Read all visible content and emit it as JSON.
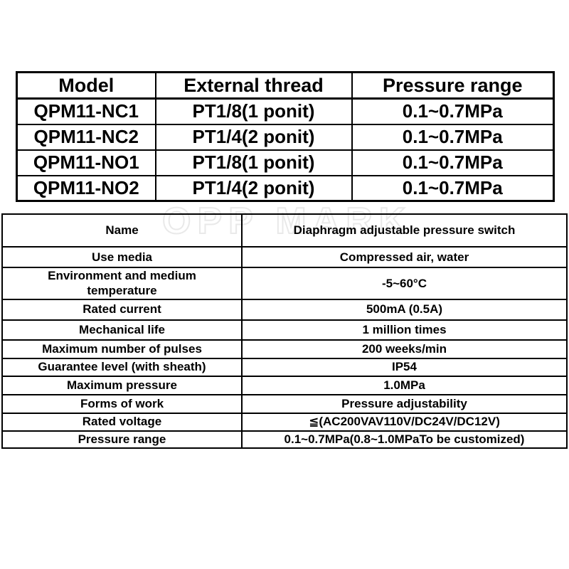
{
  "watermark": "OPP MARK",
  "model_table": {
    "headers": [
      "Model",
      "External thread",
      "Pressure range"
    ],
    "rows": [
      [
        "QPM11-NC1",
        "PT1/8(1 ponit)",
        "0.1~0.7MPa"
      ],
      [
        "QPM11-NC2",
        "PT1/4(2 ponit)",
        "0.1~0.7MPa"
      ],
      [
        "QPM11-NO1",
        "PT1/8(1 ponit)",
        "0.1~0.7MPa"
      ],
      [
        "QPM11-NO2",
        "PT1/4(2 ponit)",
        "0.1~0.7MPa"
      ]
    ]
  },
  "spec_table": {
    "rows": [
      {
        "label": "Name",
        "value": "Diaphragm adjustable pressure switch"
      },
      {
        "label": "Use media",
        "value": "Compressed air, water"
      },
      {
        "label": "Environment and medium temperature",
        "value": "-5~60°C"
      },
      {
        "label": "Rated current",
        "value": "500mA (0.5A)"
      },
      {
        "label": "Mechanical life",
        "value": "1 million times"
      },
      {
        "label": "Maximum number of pulses",
        "value": "200 weeks/min"
      },
      {
        "label": "Guarantee level (with sheath)",
        "value": "IP54"
      },
      {
        "label": "Maximum pressure",
        "value": "1.0MPa"
      },
      {
        "label": "Forms of work",
        "value": "Pressure adjustability"
      },
      {
        "label": "Rated voltage",
        "value": "≦(AC200VAV110V/DC24V/DC12V)"
      },
      {
        "label": "Pressure range",
        "value": "0.1~0.7MPa(0.8~1.0MPaTo be customized)"
      }
    ]
  },
  "colors": {
    "background": "#ffffff",
    "border": "#000000",
    "text": "#000000",
    "watermark_outline": "#e9e9e9"
  }
}
